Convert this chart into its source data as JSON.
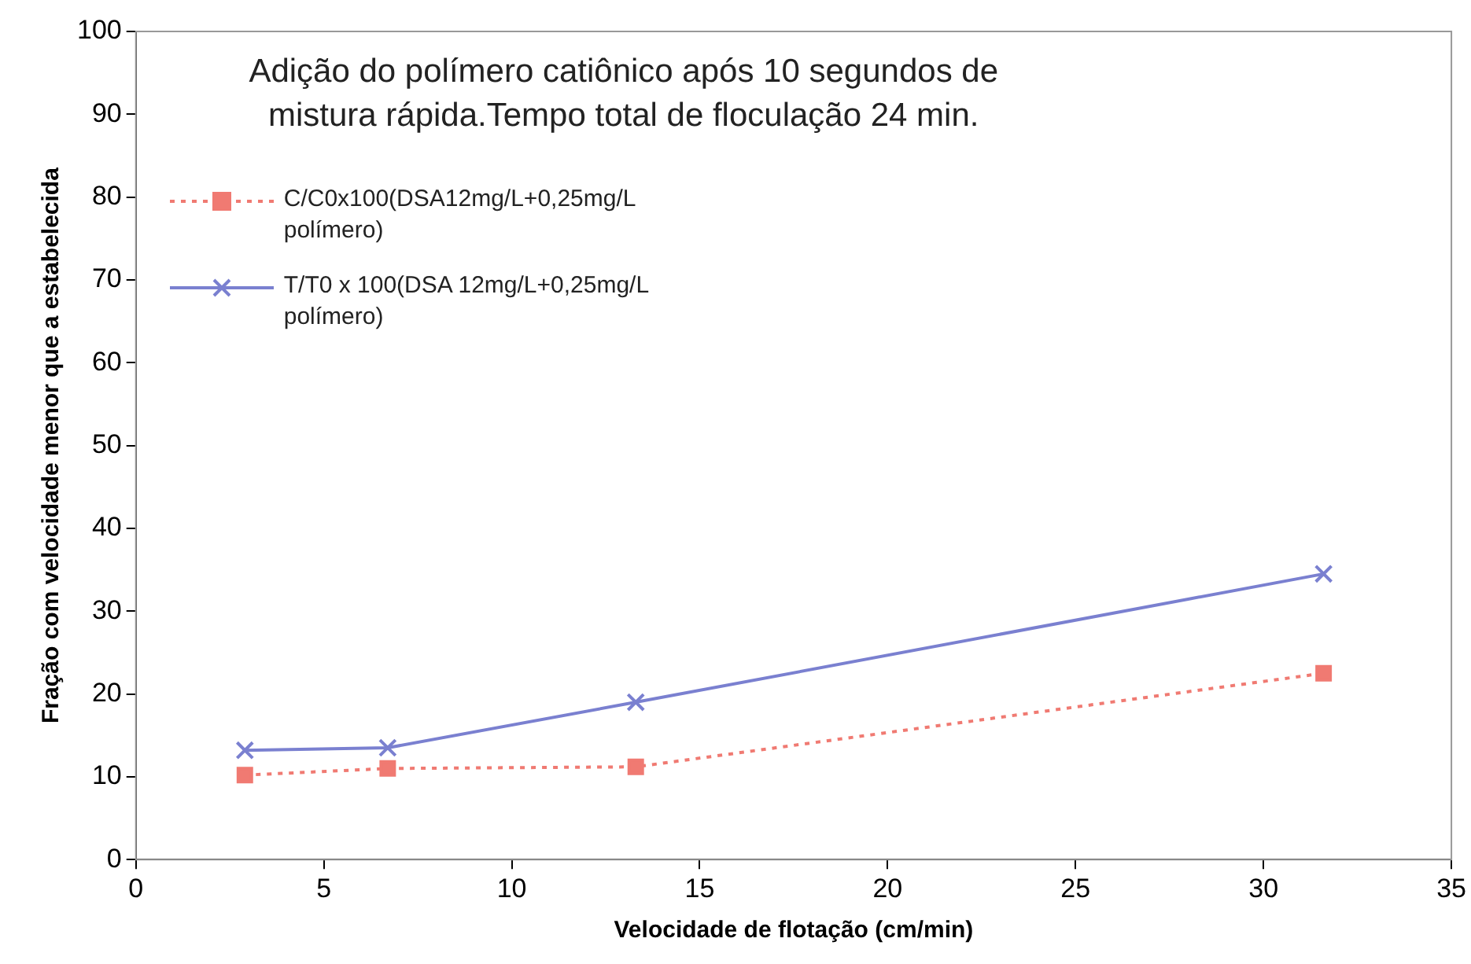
{
  "chart_data": {
    "type": "line",
    "title": "Adição do polímero catiônico após 10 segundos de mistura rápida.Tempo total de floculação 24 min.",
    "xlabel": "Velocidade de flotação (cm/min)",
    "ylabel": "Fração com velocidade menor que a estabelecida",
    "x": [
      2.9,
      6.7,
      13.3,
      31.6
    ],
    "series": [
      {
        "name": "C/C0x100(DSA12mg/L+0,25mg/L polímero)",
        "color": "#f07a72",
        "values": [
          10.2,
          11,
          11.2,
          22.5
        ],
        "marker": "square",
        "line_style": "dotted"
      },
      {
        "name": "T/T0 x 100(DSA 12mg/L+0,25mg/L polímero)",
        "color": "#7a80d0",
        "values": [
          13.2,
          13.5,
          19,
          34.5
        ],
        "marker": "cross",
        "line_style": "solid"
      }
    ],
    "xlim": [
      0,
      35
    ],
    "xticks": [
      0,
      5,
      10,
      15,
      20,
      25,
      30,
      35
    ],
    "ylim": [
      0,
      100
    ],
    "yticks": [
      0,
      10,
      20,
      30,
      40,
      50,
      60,
      70,
      80,
      90,
      100
    ],
    "grid": false,
    "legend": "top left"
  }
}
